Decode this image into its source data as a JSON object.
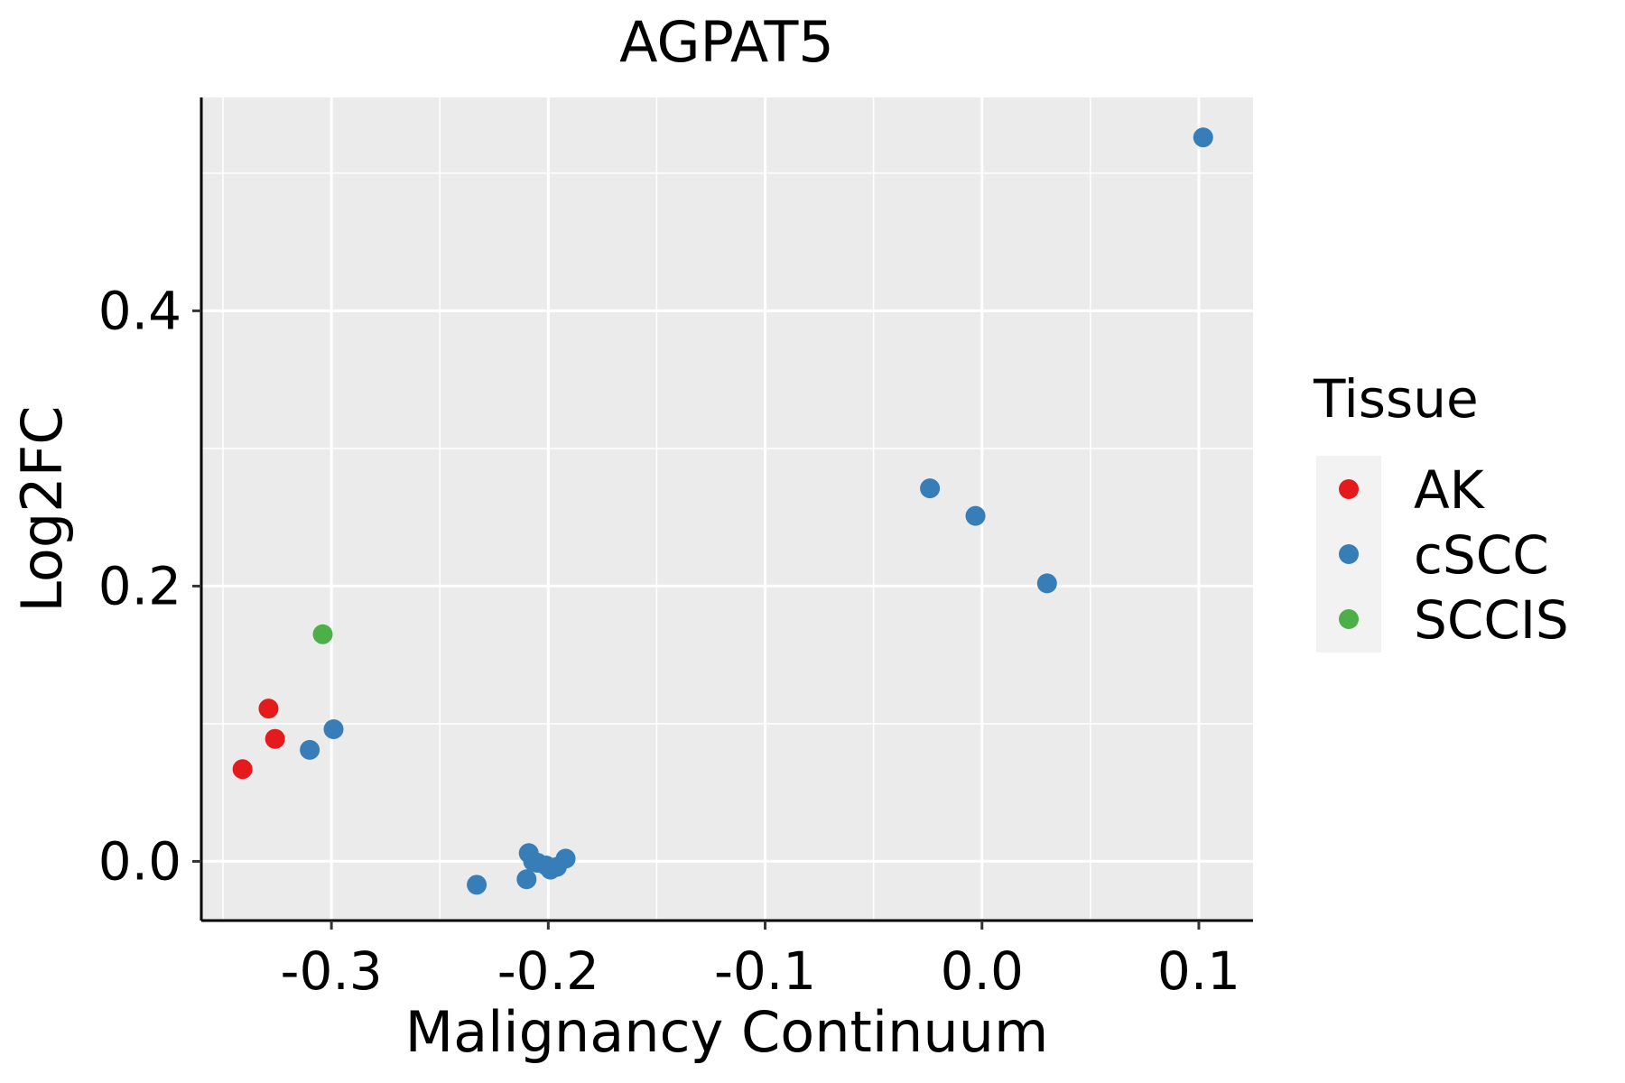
{
  "chart_data": {
    "type": "scatter",
    "title": "AGPAT5",
    "xlabel": "Malignancy Continuum",
    "ylabel": "Log2FC",
    "xlim": [
      -0.36,
      0.125
    ],
    "ylim": [
      -0.043,
      0.555
    ],
    "x_ticks": [
      {
        "value": -0.3,
        "label": "-0.3"
      },
      {
        "value": -0.2,
        "label": "-0.2"
      },
      {
        "value": -0.1,
        "label": "-0.1"
      },
      {
        "value": 0.0,
        "label": "0.0"
      },
      {
        "value": 0.1,
        "label": "0.1"
      }
    ],
    "y_ticks": [
      {
        "value": 0.0,
        "label": "0.0"
      },
      {
        "value": 0.2,
        "label": "0.2"
      },
      {
        "value": 0.4,
        "label": "0.4"
      }
    ],
    "grid": true,
    "legend": {
      "title": "Tissue",
      "placement": "right",
      "entries": [
        {
          "name": "AK",
          "color": "#e41a1c"
        },
        {
          "name": "cSCC",
          "color": "#377eb8"
        },
        {
          "name": "SCCIS",
          "color": "#4daf4a"
        }
      ]
    },
    "series": [
      {
        "name": "AK",
        "color": "#e41a1c",
        "points": [
          {
            "x": -0.341,
            "y": 0.067
          },
          {
            "x": -0.329,
            "y": 0.111
          },
          {
            "x": -0.326,
            "y": 0.089
          }
        ]
      },
      {
        "name": "cSCC",
        "color": "#377eb8",
        "points": [
          {
            "x": -0.31,
            "y": 0.081
          },
          {
            "x": -0.299,
            "y": 0.096
          },
          {
            "x": -0.233,
            "y": -0.017
          },
          {
            "x": -0.21,
            "y": -0.013
          },
          {
            "x": -0.209,
            "y": 0.006
          },
          {
            "x": -0.207,
            "y": 0.0
          },
          {
            "x": -0.205,
            "y": -0.001
          },
          {
            "x": -0.201,
            "y": -0.003
          },
          {
            "x": -0.199,
            "y": -0.006
          },
          {
            "x": -0.196,
            "y": -0.004
          },
          {
            "x": -0.192,
            "y": 0.002
          },
          {
            "x": -0.024,
            "y": 0.271
          },
          {
            "x": -0.003,
            "y": 0.251
          },
          {
            "x": 0.03,
            "y": 0.202
          },
          {
            "x": 0.102,
            "y": 0.526
          }
        ]
      },
      {
        "name": "SCCIS",
        "color": "#4daf4a",
        "points": [
          {
            "x": -0.304,
            "y": 0.165
          }
        ]
      }
    ]
  }
}
